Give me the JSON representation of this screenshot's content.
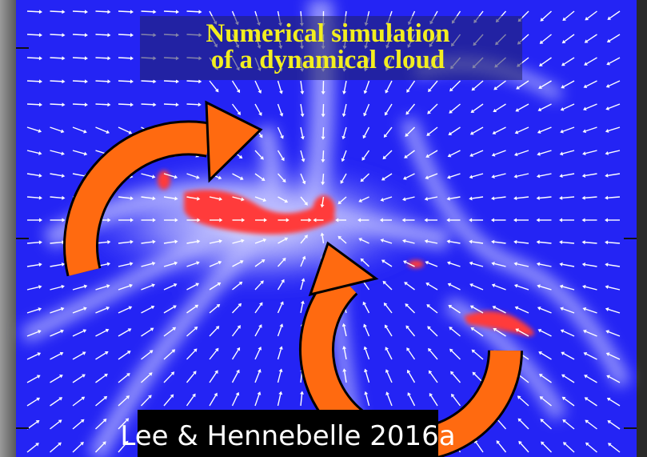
{
  "header": {
    "title_lines": [
      "Numerical simulation",
      "of a dynamical cloud"
    ]
  },
  "caption": "Lee & Hennebelle 2016a"
}
